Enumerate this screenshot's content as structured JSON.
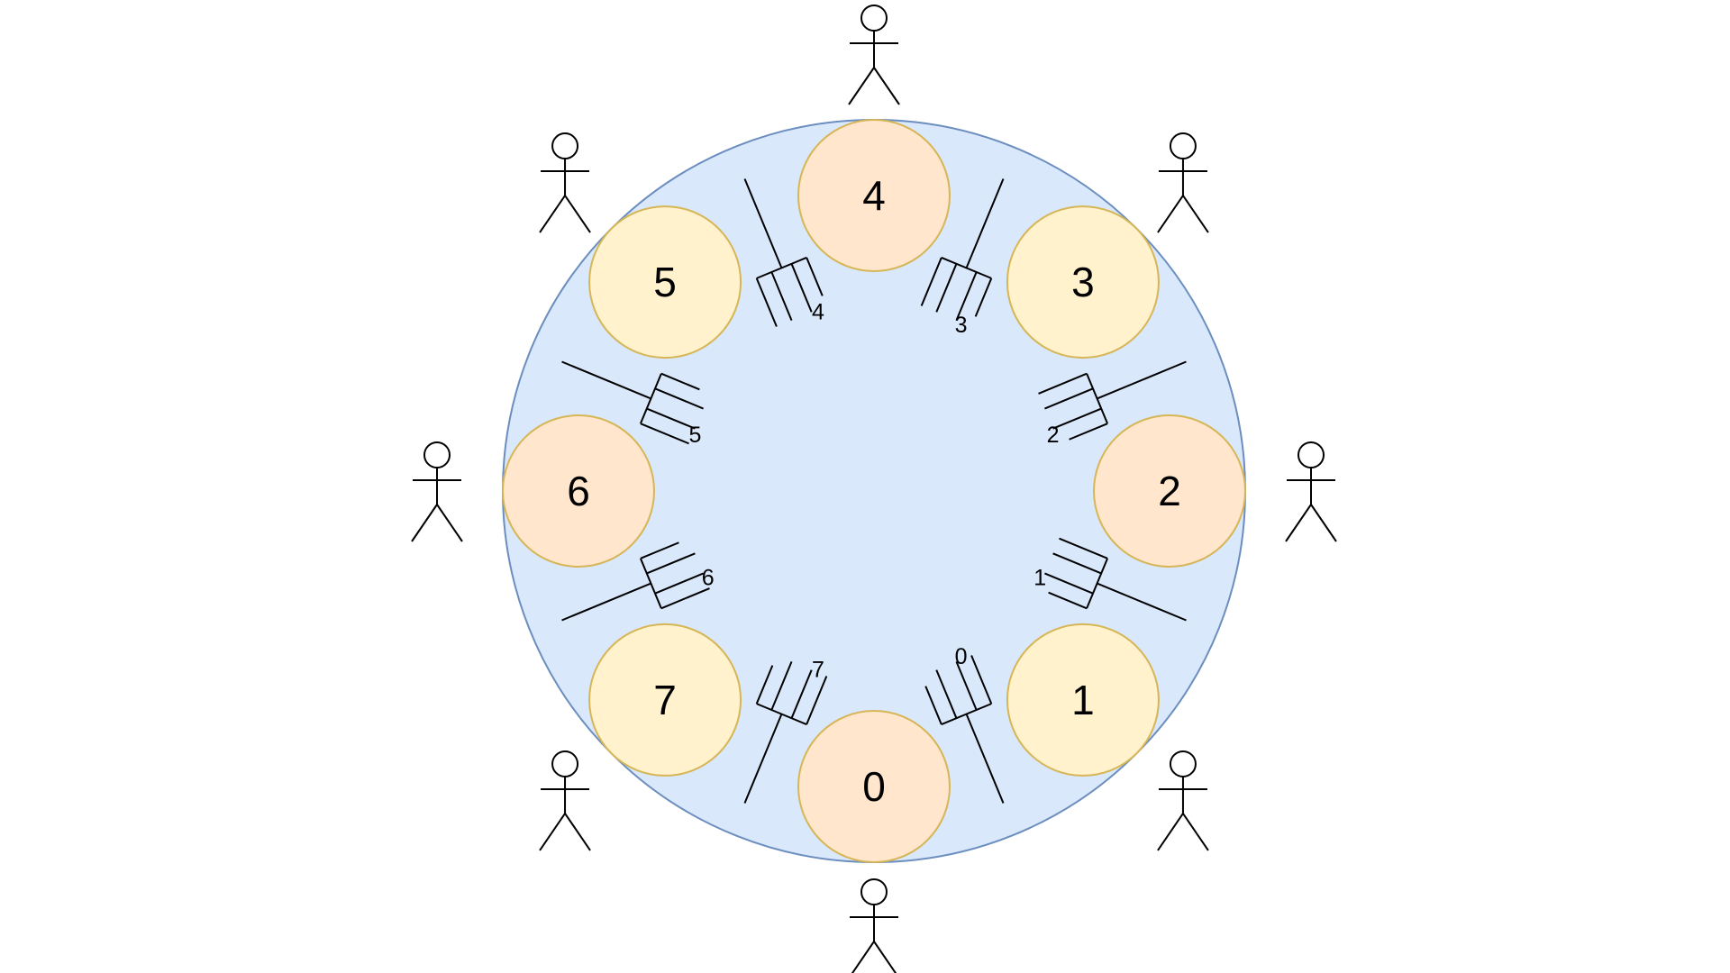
{
  "colors": {
    "table_fill": "#dae8fc",
    "table_stroke": "#6c8ebf",
    "plate_even_fill": "#ffe6cc",
    "plate_odd_fill": "#fff2cc",
    "plate_stroke": "#d6b656"
  },
  "plates": [
    {
      "id": "plate-0",
      "label": "0"
    },
    {
      "id": "plate-1",
      "label": "1"
    },
    {
      "id": "plate-2",
      "label": "2"
    },
    {
      "id": "plate-3",
      "label": "3"
    },
    {
      "id": "plate-4",
      "label": "4"
    },
    {
      "id": "plate-5",
      "label": "5"
    },
    {
      "id": "plate-6",
      "label": "6"
    },
    {
      "id": "plate-7",
      "label": "7"
    }
  ],
  "forks": [
    {
      "id": "fork-0",
      "label": "0"
    },
    {
      "id": "fork-1",
      "label": "1"
    },
    {
      "id": "fork-2",
      "label": "2"
    },
    {
      "id": "fork-3",
      "label": "3"
    },
    {
      "id": "fork-4",
      "label": "4"
    },
    {
      "id": "fork-5",
      "label": "5"
    },
    {
      "id": "fork-6",
      "label": "6"
    },
    {
      "id": "fork-7",
      "label": "7"
    }
  ],
  "philosophers": [
    {
      "id": "philosopher-0",
      "icon": "stick-figure-icon"
    },
    {
      "id": "philosopher-1",
      "icon": "stick-figure-icon"
    },
    {
      "id": "philosopher-2",
      "icon": "stick-figure-icon"
    },
    {
      "id": "philosopher-3",
      "icon": "stick-figure-icon"
    },
    {
      "id": "philosopher-4",
      "icon": "stick-figure-icon"
    },
    {
      "id": "philosopher-5",
      "icon": "stick-figure-icon"
    },
    {
      "id": "philosopher-6",
      "icon": "stick-figure-icon"
    },
    {
      "id": "philosopher-7",
      "icon": "stick-figure-icon"
    }
  ]
}
